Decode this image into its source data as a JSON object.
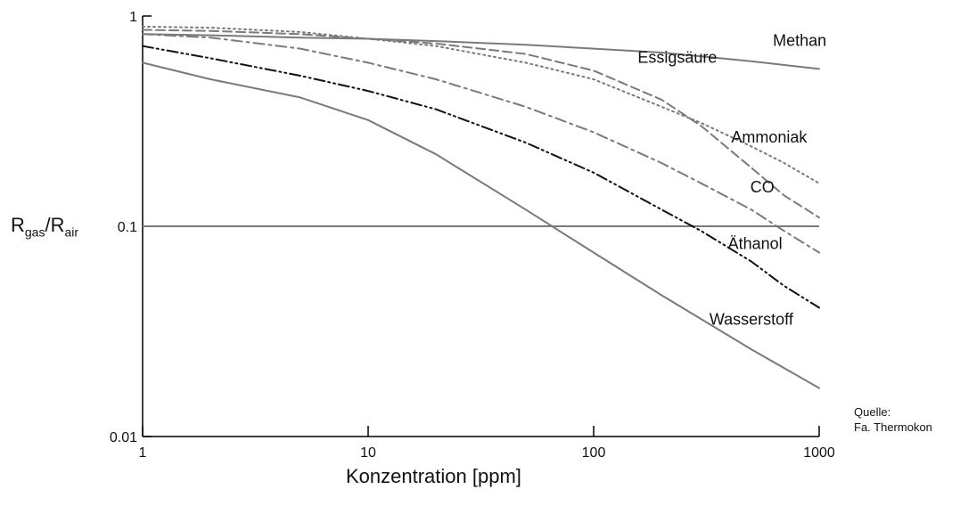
{
  "chart_data": {
    "type": "line",
    "xscale": "log",
    "yscale": "log",
    "xlim": [
      1,
      1000
    ],
    "ylim": [
      0.01,
      1
    ],
    "xticks": [
      "1",
      "10",
      "100",
      "1000"
    ],
    "yticks": [
      "1",
      "0.1",
      "0.01"
    ],
    "xlabel": "Konzentration [ppm]",
    "ylabel": {
      "main": "R",
      "sub1": "gas",
      "sep": "/R",
      "sub2": "air"
    },
    "source_line1": "Quelle:",
    "source_line2": "Fa. Thermokon",
    "grid": false,
    "series": [
      {
        "name": "Methan",
        "style": "solid",
        "x": [
          1,
          2,
          5,
          10,
          20,
          50,
          100,
          200,
          500,
          1000
        ],
        "y": [
          0.82,
          0.81,
          0.79,
          0.78,
          0.76,
          0.73,
          0.7,
          0.67,
          0.61,
          0.56
        ]
      },
      {
        "name": "Essigsäure",
        "style": "dashed",
        "x": [
          1,
          2,
          5,
          10,
          20,
          50,
          100,
          200,
          300,
          500,
          700,
          1000
        ],
        "y": [
          0.86,
          0.85,
          0.82,
          0.78,
          0.74,
          0.66,
          0.55,
          0.4,
          0.3,
          0.19,
          0.14,
          0.11
        ]
      },
      {
        "name": "Ammoniak",
        "style": "dotted",
        "x": [
          1,
          2,
          5,
          10,
          20,
          50,
          100,
          200,
          300,
          500,
          700,
          1000
        ],
        "y": [
          0.89,
          0.88,
          0.84,
          0.78,
          0.72,
          0.6,
          0.5,
          0.37,
          0.31,
          0.24,
          0.2,
          0.16
        ]
      },
      {
        "name": "CO",
        "style": "dashdot",
        "x": [
          1,
          2,
          5,
          10,
          20,
          50,
          100,
          200,
          300,
          500,
          700,
          1000
        ],
        "y": [
          0.82,
          0.79,
          0.7,
          0.6,
          0.5,
          0.37,
          0.28,
          0.2,
          0.16,
          0.12,
          0.095,
          0.075
        ]
      },
      {
        "name": "Äthanol",
        "style": "dashdotdot",
        "x": [
          1,
          2,
          5,
          10,
          20,
          50,
          100,
          200,
          300,
          500,
          700,
          1000
        ],
        "y": [
          0.72,
          0.63,
          0.52,
          0.44,
          0.36,
          0.25,
          0.18,
          0.12,
          0.095,
          0.068,
          0.052,
          0.041
        ]
      },
      {
        "name": "Wasserstoff",
        "style": "solid",
        "x": [
          1,
          2,
          5,
          10,
          20,
          50,
          100,
          200,
          500,
          1000
        ],
        "y": [
          0.6,
          0.5,
          0.41,
          0.32,
          0.22,
          0.12,
          0.075,
          0.047,
          0.026,
          0.017
        ]
      }
    ],
    "reference_line": {
      "y": 0.1,
      "style": "solid"
    },
    "line_color": "#7a7a7a",
    "axis_color": "#000000"
  }
}
